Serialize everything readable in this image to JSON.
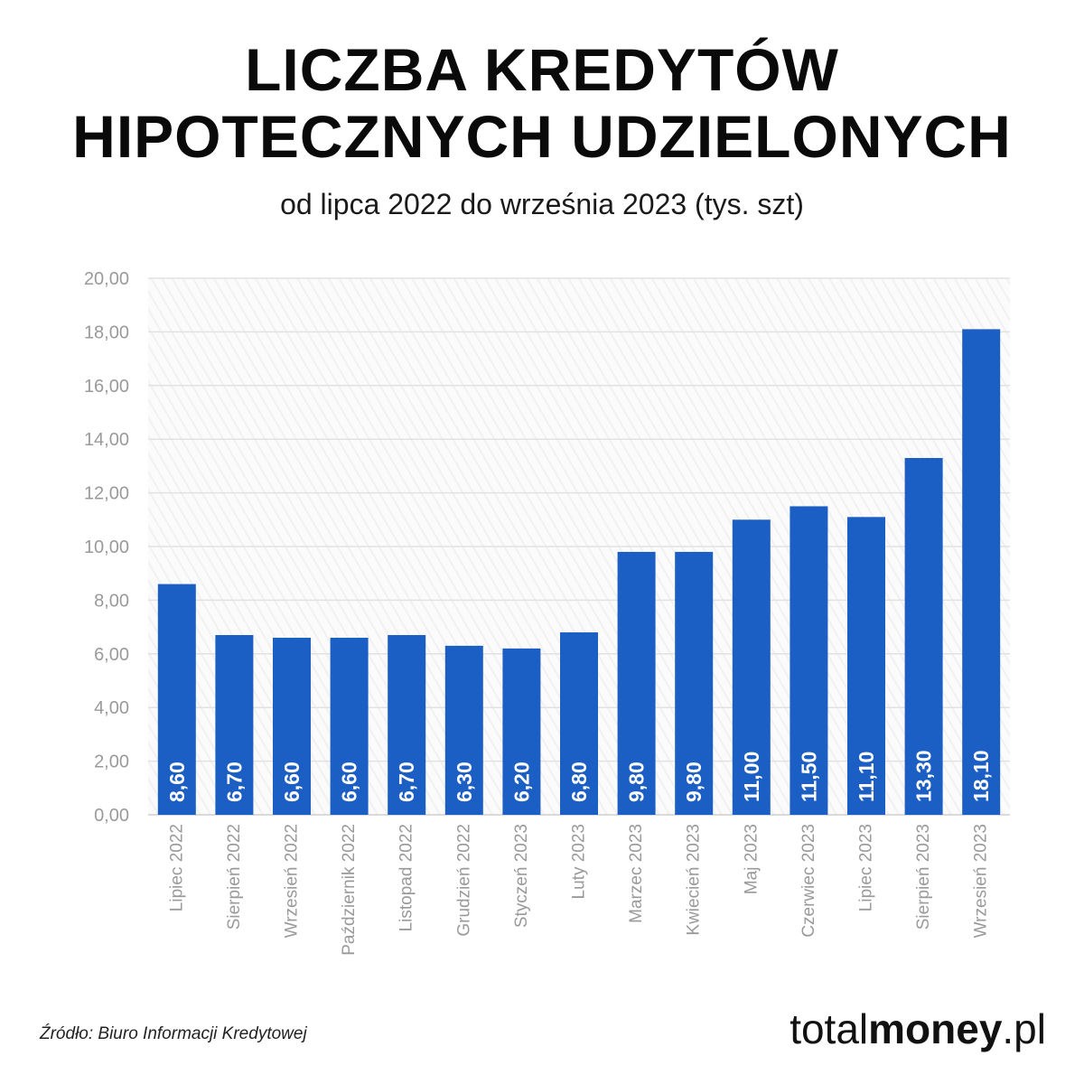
{
  "header": {
    "title_line1": "LICZBA KREDYTÓW",
    "title_line2": "HIPOTECZNYCH UDZIELONYCH",
    "subtitle": "od lipca 2022 do września 2023 (tys. szt)"
  },
  "footer": {
    "source": "Źródło: Biuro Informacji Kredytowej",
    "brand_part1": "total",
    "brand_part2": "money",
    "brand_part3": ".pl"
  },
  "colors": {
    "bar": "#1c5fc4",
    "bar_label": "#ffffff",
    "axis_text": "#9a9a9a",
    "grid": "#e2e2e2"
  },
  "chart_data": {
    "type": "bar",
    "categories": [
      "Lipiec 2022",
      "Sierpień 2022",
      "Wrzesień 2022",
      "Październik 2022",
      "Listopad 2022",
      "Grudzień 2022",
      "Styczeń 2023",
      "Luty 2023",
      "Marzec 2023",
      "Kwiecień 2023",
      "Maj 2023",
      "Czerwiec 2023",
      "Lipiec 2023",
      "Sierpień 2023",
      "Wrzesień 2023"
    ],
    "values": [
      8.6,
      6.7,
      6.6,
      6.6,
      6.7,
      6.3,
      6.2,
      6.8,
      9.8,
      9.8,
      11.0,
      11.5,
      11.1,
      13.3,
      18.1
    ],
    "value_labels": [
      "8,60",
      "6,70",
      "6,60",
      "6,60",
      "6,70",
      "6,30",
      "6,20",
      "6,80",
      "9,80",
      "9,80",
      "11,00",
      "11,50",
      "11,10",
      "13,30",
      "18,10"
    ],
    "yticks": [
      "0,00",
      "2,00",
      "4,00",
      "6,00",
      "8,00",
      "10,00",
      "12,00",
      "14,00",
      "16,00",
      "18,00",
      "20,00"
    ],
    "ylim": [
      0,
      20
    ],
    "ystep": 2,
    "grid": true,
    "legend": "none",
    "title": "LICZBA KREDYTÓW HIPOTECZNYCH UDZIELONYCH",
    "subtitle": "od lipca 2022 do września 2023 (tys. szt)",
    "xlabel": "",
    "ylabel": ""
  }
}
